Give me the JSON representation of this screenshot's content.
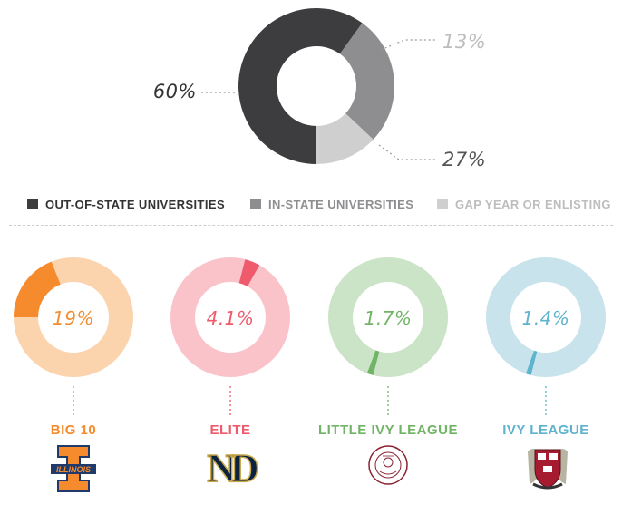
{
  "chart_data": [
    {
      "type": "pie",
      "categories": [
        "OUT-OF-STATE UNIVERSITIES",
        "IN-STATE UNIVERSITIES",
        "GAP YEAR OR ENLISTING"
      ],
      "values": [
        60,
        27,
        13
      ],
      "labels": [
        "60%",
        "27%",
        "13%"
      ],
      "colors": [
        "#3d3d3f",
        "#8e8e90",
        "#cfcfd0"
      ],
      "legend": "bottom"
    },
    {
      "type": "pie",
      "categories": [
        "BIG 10",
        "ELITE",
        "LITTLE IVY LEAGUE",
        "IVY LEAGUE"
      ],
      "values": [
        19,
        4.1,
        1.7,
        1.4
      ],
      "labels": [
        "19%",
        "4.1%",
        "1.7%",
        "1.4%"
      ],
      "colors": {
        "dark": [
          "#f58b2d",
          "#ef5b6d",
          "#72b466",
          "#5eb3cd"
        ],
        "light": [
          "#fbd3ad",
          "#f9c3c9",
          "#cbe3c6",
          "#c8e3ec"
        ]
      }
    }
  ],
  "legend": [
    {
      "label": "OUT-OF-STATE UNIVERSITIES",
      "color": "#3d3d3f",
      "text_color": "#333333"
    },
    {
      "label": "IN-STATE UNIVERSITIES",
      "color": "#8e8e90",
      "text_color": "#8e8e90"
    },
    {
      "label": "GAP YEAR OR ENLISTING",
      "color": "#cfcfd0",
      "text_color": "#bdbdbd"
    }
  ],
  "categories": [
    {
      "label": "BIG 10",
      "logo": "illinois-logo-icon",
      "logo_text": "ILLINOIS"
    },
    {
      "label": "ELITE",
      "logo": "notre-dame-logo-icon",
      "logo_text": "ND"
    },
    {
      "label": "LITTLE IVY LEAGUE",
      "logo": "colgate-seal-icon",
      "logo_text": "COLGATE UNIVERSITY"
    },
    {
      "label": "IVY LEAGUE",
      "logo": "harvard-shield-icon",
      "logo_text": "HARVARD"
    }
  ]
}
